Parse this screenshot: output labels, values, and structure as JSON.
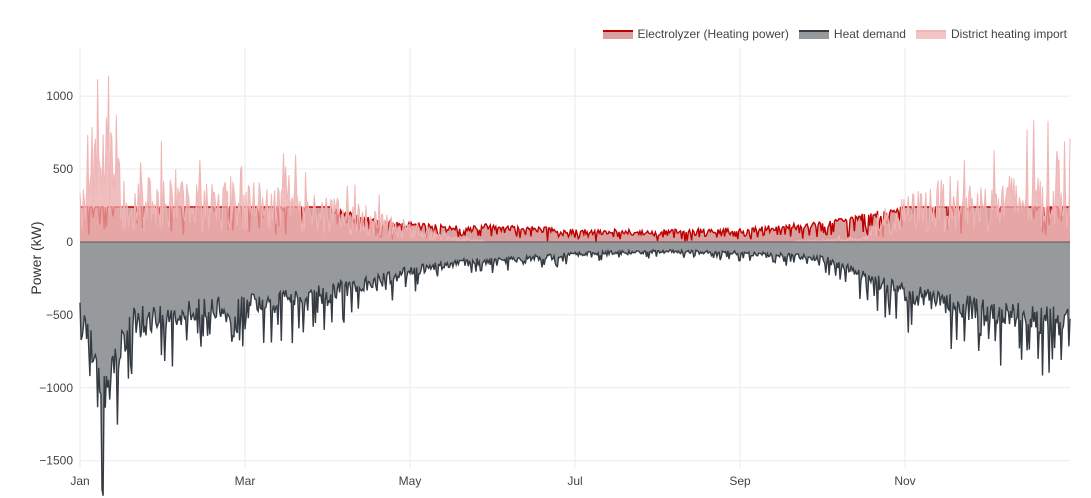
{
  "chart_data": {
    "type": "area",
    "title": "",
    "ylabel": "Power (kW)",
    "xlabel": "",
    "ylim": [
      -1550,
      1330
    ],
    "yticks": [
      1000,
      500,
      0,
      -500,
      -1000,
      -1500
    ],
    "ytick_labels": [
      "1000",
      "500",
      "0",
      "−500",
      "−1000",
      "−1500"
    ],
    "xticks": [
      {
        "label": "Jan",
        "month": 0
      },
      {
        "label": "Mar",
        "month": 2
      },
      {
        "label": "May",
        "month": 4
      },
      {
        "label": "Jul",
        "month": 6
      },
      {
        "label": "Sep",
        "month": 8
      },
      {
        "label": "Nov",
        "month": 10
      }
    ],
    "grid": true,
    "legend_position": "top-right",
    "series": [
      {
        "name": "Electrolyzer (Heating power)",
        "color": "#c00000",
        "fill": "#d9a0a0",
        "sample_month": [
          0,
          1,
          2,
          3,
          3.5,
          4,
          4.5,
          5,
          5.5,
          6,
          7,
          8,
          9,
          10,
          11,
          12
        ],
        "sample_value": [
          240,
          240,
          240,
          230,
          150,
          120,
          90,
          110,
          90,
          70,
          65,
          80,
          120,
          230,
          240,
          240
        ]
      },
      {
        "name": "Heat demand",
        "color": "#353b42",
        "fill": "#969a9d",
        "sample_month": [
          0,
          0.3,
          0.6,
          1,
          1.5,
          2,
          2.5,
          3,
          3.5,
          4,
          4.5,
          5,
          5.5,
          6,
          7,
          8,
          9,
          10,
          10.5,
          11,
          11.5,
          12
        ],
        "sample_value": [
          -500,
          -1100,
          -600,
          -550,
          -500,
          -480,
          -430,
          -380,
          -300,
          -220,
          -160,
          -140,
          -120,
          -90,
          -70,
          -80,
          -120,
          -380,
          -460,
          -500,
          -560,
          -600
        ]
      },
      {
        "name": "District heating import",
        "color": "#f0b6b6",
        "fill": "#eba8a8",
        "sample_month": [
          0,
          0.2,
          0.5,
          1,
          1.5,
          2,
          2.5,
          3,
          3.5,
          4,
          4.5,
          5,
          7,
          8.5,
          9.5,
          10,
          10.5,
          11,
          11.5,
          12
        ],
        "sample_value": [
          300,
          900,
          350,
          350,
          320,
          350,
          300,
          250,
          200,
          100,
          30,
          0,
          0,
          0,
          30,
          250,
          350,
          320,
          400,
          450
        ]
      }
    ]
  }
}
